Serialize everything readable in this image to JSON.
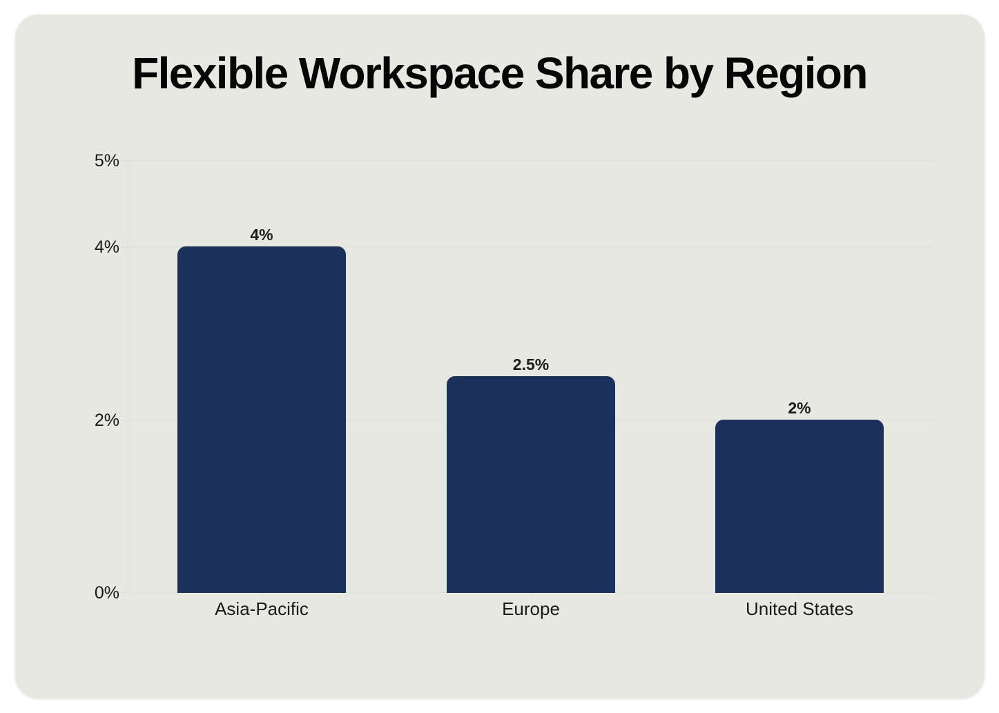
{
  "title": "Flexible Workspace Share by Region",
  "colors": {
    "bar": "#1C305C",
    "card": "#E8E8E3",
    "grid": "#DEDFDA"
  },
  "y_axis": {
    "ticks": [
      {
        "label": "5%",
        "value": 5
      },
      {
        "label": "4%",
        "value": 4
      },
      {
        "label": "2%",
        "value": 2
      },
      {
        "label": "0%",
        "value": 0
      }
    ]
  },
  "bars": [
    {
      "category": "Asia-Pacific",
      "value": 4,
      "label": "4%"
    },
    {
      "category": "Europe",
      "value": 2.5,
      "label": "2.5%"
    },
    {
      "category": "United States",
      "value": 2,
      "label": "2%"
    }
  ],
  "chart_data": {
    "type": "bar",
    "title": "Flexible Workspace Share by Region",
    "categories": [
      "Asia-Pacific",
      "Europe",
      "United States"
    ],
    "values": [
      4,
      2.5,
      2
    ],
    "data_labels": [
      "4%",
      "2.5%",
      "2%"
    ],
    "xlabel": "",
    "ylabel": "",
    "ylim": [
      0,
      5
    ],
    "y_tick_labels": [
      "0%",
      "2%",
      "4%",
      "5%"
    ],
    "grid": {
      "horizontal": true,
      "vertical": false
    },
    "legend": null
  }
}
